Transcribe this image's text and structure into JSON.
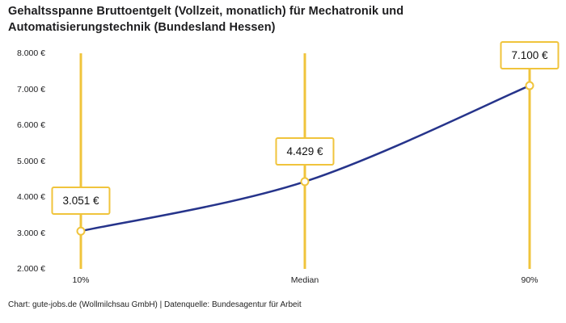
{
  "footer": {
    "attribution": "Chart: gute-jobs.de (Wollmilchsau GmbH) | Datenquelle: Bundesagentur für Arbeit"
  },
  "colors": {
    "accent_yellow": "#F0C43C",
    "line_blue": "#26348B",
    "text_dark": "#1D1D1F",
    "background": "#FFFFFF"
  },
  "chart_data": {
    "type": "line",
    "title": "Gehaltsspanne Bruttoentgelt (Vollzeit, monatlich) für Mechatronik und Automatisierungstechnik (Bundesland Hessen)",
    "categories": [
      "10%",
      "Median",
      "90%"
    ],
    "values": [
      3051,
      4429,
      7100
    ],
    "value_labels": [
      "3.051 €",
      "4.429 €",
      "7.100 €"
    ],
    "ylim": [
      2000,
      8000
    ],
    "y_ticks": [
      2000,
      3000,
      4000,
      5000,
      6000,
      7000,
      8000
    ],
    "y_tick_labels": [
      "2.000 €",
      "3.000 €",
      "4.000 €",
      "5.000 €",
      "6.000 €",
      "7.000 €",
      "8.000 €"
    ],
    "xlabel": "",
    "ylabel": "",
    "grid": false,
    "legend": "none",
    "marker": "open-circle",
    "annotations": "boxed value labels above each marker, vertical accent guide lines at each category"
  }
}
